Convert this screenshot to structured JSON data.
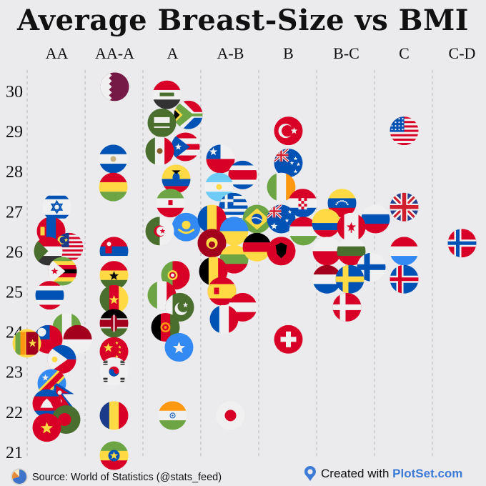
{
  "chart_data": {
    "type": "scatter",
    "title": "Average Breast-Size vs BMI",
    "xlabel": "",
    "ylabel": "",
    "categories": [
      "AA",
      "AA-A",
      "A",
      "A-B",
      "B",
      "B-C",
      "C",
      "C-D"
    ],
    "yticks": [
      21,
      22,
      23,
      24,
      25,
      26,
      27,
      28,
      29,
      30
    ],
    "ylim": [
      20.7,
      30.3
    ],
    "grid": "vertical dashed separators between categories",
    "legend": "none",
    "marker": "circular country flags",
    "points": [
      {
        "country": "Israel",
        "flag": "israel",
        "category": "AA",
        "bmi": 27.1,
        "jitter": 0
      },
      {
        "country": "Mongolia",
        "flag": "mongolia",
        "category": "AA",
        "bmi": 26.5,
        "jitter": -8
      },
      {
        "country": "Malaysia",
        "flag": "malaysia",
        "category": "AA",
        "bmi": 26.1,
        "jitter": 17
      },
      {
        "country": "Sudan",
        "flag": "sudan",
        "category": "AA",
        "bmi": 26.0,
        "jitter": -12
      },
      {
        "country": "Zimbabwe",
        "flag": "zimbabwe",
        "category": "AA",
        "bmi": 25.5,
        "jitter": 8
      },
      {
        "country": "Thailand",
        "flag": "thailand",
        "category": "AA",
        "bmi": 24.9,
        "jitter": -10
      },
      {
        "country": "Nigeria",
        "flag": "nigeria",
        "category": "AA",
        "bmi": 24.1,
        "jitter": 14
      },
      {
        "country": "Taiwan",
        "flag": "taiwan",
        "category": "AA",
        "bmi": 23.8,
        "jitter": -12
      },
      {
        "country": "Sri Lanka",
        "flag": "srilanka",
        "category": "AA",
        "bmi": 23.7,
        "jitter": -42
      },
      {
        "country": "Indonesia",
        "flag": "indonesia",
        "category": "AA",
        "bmi": 23.8,
        "jitter": 29
      },
      {
        "country": "Philippines",
        "flag": "philippines",
        "category": "AA",
        "bmi": 23.3,
        "jitter": 7
      },
      {
        "country": "DR Congo",
        "flag": "drcongo",
        "category": "AA",
        "bmi": 22.7,
        "jitter": -7
      },
      {
        "country": "Nepal",
        "flag": "nepal",
        "category": "AA",
        "bmi": 22.4,
        "jitter": 10
      },
      {
        "country": "Cambodia",
        "flag": "cambodia",
        "category": "AA",
        "bmi": 22.2,
        "jitter": -14
      },
      {
        "country": "Bangladesh",
        "flag": "bangladesh",
        "category": "AA",
        "bmi": 21.8,
        "jitter": 13
      },
      {
        "country": "Vietnam",
        "flag": "vietnam",
        "category": "AA",
        "bmi": 21.6,
        "jitter": -14
      },
      {
        "country": "Qatar",
        "flag": "qatar",
        "category": "AA-A",
        "bmi": 30.1,
        "jitter": 0
      },
      {
        "country": "El Salvador",
        "flag": "elsalvador",
        "category": "AA-A",
        "bmi": 28.3,
        "jitter": -2
      },
      {
        "country": "Bolivia",
        "flag": "bolivia",
        "category": "AA-A",
        "bmi": 27.6,
        "jitter": -2
      },
      {
        "country": "Serbia",
        "flag": "serbia",
        "category": "AA-A",
        "bmi": 26.0,
        "jitter": -1
      },
      {
        "country": "Ghana",
        "flag": "ghana",
        "category": "AA-A",
        "bmi": 25.4,
        "jitter": -1
      },
      {
        "country": "Cameroon",
        "flag": "cameroon",
        "category": "AA-A",
        "bmi": 24.8,
        "jitter": -1
      },
      {
        "country": "Kenya",
        "flag": "kenya",
        "category": "AA-A",
        "bmi": 24.2,
        "jitter": -1
      },
      {
        "country": "China",
        "flag": "china",
        "category": "AA-A",
        "bmi": 23.5,
        "jitter": -1
      },
      {
        "country": "South Korea",
        "flag": "southkorea",
        "category": "AA-A",
        "bmi": 23.0,
        "jitter": -1
      },
      {
        "country": "Chad",
        "flag": "chad",
        "category": "AA-A",
        "bmi": 21.9,
        "jitter": -1
      },
      {
        "country": "Ethiopia",
        "flag": "ethiopia",
        "category": "AA-A",
        "bmi": 20.9,
        "jitter": -1
      },
      {
        "country": "Iraq",
        "flag": "iraq",
        "category": "A",
        "bmi": 29.9,
        "jitter": -8
      },
      {
        "country": "South Africa",
        "flag": "southafrica",
        "category": "A",
        "bmi": 29.4,
        "jitter": 22
      },
      {
        "country": "Saudi Arabia",
        "flag": "saudiarabia",
        "category": "A",
        "bmi": 29.2,
        "jitter": -15
      },
      {
        "country": "Puerto Rico",
        "flag": "puertorico",
        "category": "A",
        "bmi": 28.6,
        "jitter": 18
      },
      {
        "country": "Mexico",
        "flag": "mexico",
        "category": "A",
        "bmi": 28.5,
        "jitter": -18
      },
      {
        "country": "Ecuador",
        "flag": "ecuador",
        "category": "A",
        "bmi": 27.8,
        "jitter": 5
      },
      {
        "country": "Iran",
        "flag": "iran",
        "category": "A",
        "bmi": 27.2,
        "jitter": -3
      },
      {
        "country": "Kazakhstan",
        "flag": "kazakhstan",
        "category": "A",
        "bmi": 26.6,
        "jitter": 19
      },
      {
        "country": "Algeria",
        "flag": "algeria",
        "category": "A",
        "bmi": 26.5,
        "jitter": -18
      },
      {
        "country": "Portugal",
        "flag": "portugal",
        "category": "A",
        "bmi": 25.4,
        "jitter": 4
      },
      {
        "country": "Italy",
        "flag": "italy",
        "category": "A",
        "bmi": 24.9,
        "jitter": -15
      },
      {
        "country": "Pakistan",
        "flag": "pakistan",
        "category": "A",
        "bmi": 24.6,
        "jitter": 10
      },
      {
        "country": "Afghanistan",
        "flag": "afghanistan",
        "category": "A",
        "bmi": 24.1,
        "jitter": -10
      },
      {
        "country": "Somalia",
        "flag": "somalia",
        "category": "A",
        "bmi": 23.6,
        "jitter": 9
      },
      {
        "country": "India",
        "flag": "india",
        "category": "A",
        "bmi": 21.9,
        "jitter": 0
      },
      {
        "country": "Chile",
        "flag": "chile",
        "category": "A-B",
        "bmi": 28.3,
        "jitter": -14
      },
      {
        "country": "Costa Rica",
        "flag": "costarica",
        "category": "A-B",
        "bmi": 27.9,
        "jitter": 17
      },
      {
        "country": "Argentina",
        "flag": "argentina",
        "category": "A-B",
        "bmi": 27.6,
        "jitter": -16
      },
      {
        "country": "Greece",
        "flag": "greece",
        "category": "A-B",
        "bmi": 27.1,
        "jitter": 4
      },
      {
        "country": "Romania",
        "flag": "romania",
        "category": "A-B",
        "bmi": 26.8,
        "jitter": -26
      },
      {
        "country": "Brazil",
        "flag": "brazil",
        "category": "A-B",
        "bmi": 26.8,
        "jitter": 37
      },
      {
        "country": "Ukraine",
        "flag": "ukraine",
        "category": "A-B",
        "bmi": 26.5,
        "jitter": 5
      },
      {
        "country": "Montenegro",
        "flag": "montenegro",
        "category": "A-B",
        "bmi": 26.2,
        "jitter": -26
      },
      {
        "country": "Lithuania",
        "flag": "lithuania",
        "category": "A-B",
        "bmi": 25.8,
        "jitter": 5
      },
      {
        "country": "Belgium",
        "flag": "belgium",
        "category": "A-B",
        "bmi": 25.5,
        "jitter": -24
      },
      {
        "country": "Spain",
        "flag": "spain",
        "category": "A-B",
        "bmi": 25.0,
        "jitter": -12
      },
      {
        "country": "Austria",
        "flag": "austria",
        "category": "A-B",
        "bmi": 24.6,
        "jitter": 17
      },
      {
        "country": "France",
        "flag": "france",
        "category": "A-B",
        "bmi": 24.3,
        "jitter": -9
      },
      {
        "country": "Japan",
        "flag": "japan",
        "category": "A-B",
        "bmi": 21.9,
        "jitter": 0
      },
      {
        "country": "Turkey",
        "flag": "turkey",
        "category": "B",
        "bmi": 29.0,
        "jitter": 0
      },
      {
        "country": "New Zealand",
        "flag": "newzealand",
        "category": "B",
        "bmi": 28.2,
        "jitter": 0
      },
      {
        "country": "Ireland",
        "flag": "ireland",
        "category": "B",
        "bmi": 27.6,
        "jitter": -10
      },
      {
        "country": "Croatia",
        "flag": "croatia",
        "category": "B",
        "bmi": 27.2,
        "jitter": 20
      },
      {
        "country": "Australia",
        "flag": "australia",
        "category": "B",
        "bmi": 26.8,
        "jitter": -10
      },
      {
        "country": "Hungary",
        "flag": "hungary",
        "category": "B",
        "bmi": 26.5,
        "jitter": 21
      },
      {
        "country": "Germany",
        "flag": "germany",
        "category": "B",
        "bmi": 26.1,
        "jitter": -44
      },
      {
        "country": "Albania",
        "flag": "albania",
        "category": "B",
        "bmi": 26.0,
        "jitter": -10
      },
      {
        "country": "Switzerland",
        "flag": "switzerland",
        "category": "B",
        "bmi": 23.8,
        "jitter": 0
      },
      {
        "country": "Venezuela",
        "flag": "venezuela",
        "category": "B-C",
        "bmi": 27.2,
        "jitter": -6
      },
      {
        "country": "Colombia",
        "flag": "colombia",
        "category": "B-C",
        "bmi": 26.7,
        "jitter": -28
      },
      {
        "country": "Russia",
        "flag": "russia",
        "category": "B-C",
        "bmi": 26.8,
        "jitter": 41
      },
      {
        "country": "Canada",
        "flag": "canada",
        "category": "B-C",
        "bmi": 26.6,
        "jitter": 7
      },
      {
        "country": "Poland",
        "flag": "poland",
        "category": "B-C",
        "bmi": 26.0,
        "jitter": -27
      },
      {
        "country": "Bulgaria",
        "flag": "bulgaria",
        "category": "B-C",
        "bmi": 26.0,
        "jitter": 7
      },
      {
        "country": "Finland",
        "flag": "finland",
        "category": "B-C",
        "bmi": 25.6,
        "jitter": 35
      },
      {
        "country": "Netherlands",
        "flag": "netherlands",
        "category": "B-C",
        "bmi": 25.3,
        "jitter": -27
      },
      {
        "country": "Sweden",
        "flag": "sweden",
        "category": "B-C",
        "bmi": 25.3,
        "jitter": 5
      },
      {
        "country": "Denmark",
        "flag": "denmark",
        "category": "B-C",
        "bmi": 24.6,
        "jitter": 1
      },
      {
        "country": "United States",
        "flag": "usa",
        "category": "C",
        "bmi": 29.0,
        "jitter": 0
      },
      {
        "country": "United Kingdom",
        "flag": "uk",
        "category": "C",
        "bmi": 27.1,
        "jitter": 0
      },
      {
        "country": "Luxembourg",
        "flag": "luxembourg",
        "category": "C",
        "bmi": 26.0,
        "jitter": 0
      },
      {
        "country": "Iceland",
        "flag": "iceland",
        "category": "C",
        "bmi": 25.3,
        "jitter": 0
      },
      {
        "country": "Norway",
        "flag": "norway",
        "category": "C-D",
        "bmi": 26.2,
        "jitter": 0
      }
    ]
  },
  "footer": {
    "source_text": "Source: World of Statistics (@stats_feed)",
    "created_prefix": "Created with ",
    "created_brand": "PlotSet.com"
  },
  "colors": {
    "background": "#ebebed",
    "grid": "#b5b5b8",
    "text": "#111111",
    "brand": "#3d7bd6"
  }
}
